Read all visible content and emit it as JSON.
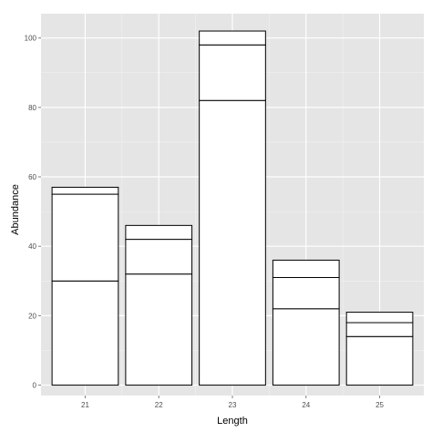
{
  "chart_data": {
    "type": "bar",
    "stacked": true,
    "categories": [
      "21",
      "22",
      "23",
      "24",
      "25"
    ],
    "series": [
      {
        "values": [
          30,
          32,
          82,
          22,
          14
        ]
      },
      {
        "values": [
          25,
          10,
          16,
          9,
          4
        ]
      },
      {
        "values": [
          2,
          4,
          4,
          5,
          3
        ]
      }
    ],
    "totals": [
      57,
      46,
      102,
      36,
      21
    ],
    "xlabel": "Length",
    "ylabel": "Abundance",
    "ylim": [
      -3,
      107
    ],
    "yticks": [
      0,
      20,
      40,
      60,
      80,
      100
    ],
    "grid": true,
    "legend": "none",
    "colors": {
      "panel": "#e5e5e5",
      "grid_major": "#ffffff",
      "grid_minor": "#f2f2f2",
      "bar_fill": "#ffffff",
      "bar_outline": "#000000",
      "tick_text": "#4d4d4d"
    }
  }
}
